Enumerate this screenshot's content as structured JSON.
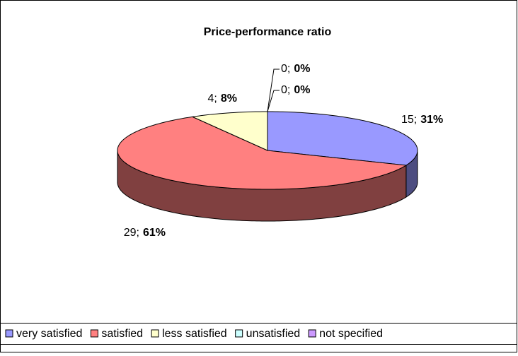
{
  "chart_data": {
    "type": "pie3d",
    "title": "Price-performance ratio",
    "categories": [
      "very satisfied",
      "satisfied",
      "less satisfied",
      "unsatisfied",
      "not specified"
    ],
    "values": [
      15,
      29,
      4,
      0,
      0
    ],
    "value_labels": [
      "15;",
      "29;",
      "4;",
      "0;",
      "0;"
    ],
    "percent_labels": [
      "31%",
      "61%",
      "8%",
      "0%",
      "0%"
    ],
    "colors": [
      "#9999ff",
      "#ff8080",
      "#ffffcc",
      "#ccffff",
      "#cc99ff"
    ],
    "side_colors": [
      "#4d4d80",
      "#804040",
      "#808066",
      "#668080",
      "#664d80"
    ],
    "legend": "bottom"
  }
}
